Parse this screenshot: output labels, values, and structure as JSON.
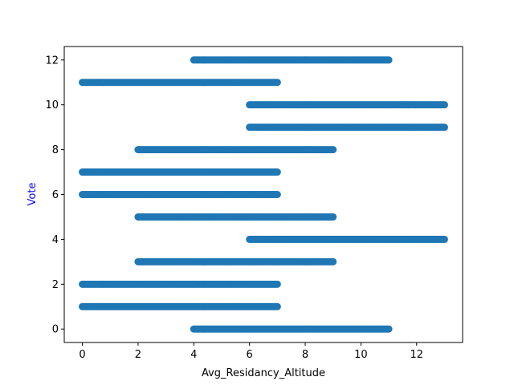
{
  "chart_data": {
    "type": "scatter",
    "title": "",
    "xlabel": "Avg_Residancy_Altitude",
    "ylabel": "Vote",
    "xlim": [
      -0.65,
      13.65
    ],
    "ylim": [
      -0.6,
      12.6
    ],
    "xticks": [
      0,
      2,
      4,
      6,
      8,
      10,
      12
    ],
    "yticks": [
      0,
      2,
      4,
      6,
      8,
      10,
      12
    ],
    "grid": false,
    "marker_color": "#1f77b4",
    "ylabel_color": "#0000ff",
    "bands": [
      {
        "y": 0,
        "x_min": 4,
        "x_max": 11
      },
      {
        "y": 1,
        "x_min": 0,
        "x_max": 7
      },
      {
        "y": 2,
        "x_min": 0,
        "x_max": 7
      },
      {
        "y": 3,
        "x_min": 2,
        "x_max": 9
      },
      {
        "y": 4,
        "x_min": 6,
        "x_max": 13
      },
      {
        "y": 5,
        "x_min": 2,
        "x_max": 9
      },
      {
        "y": 6,
        "x_min": 0,
        "x_max": 7
      },
      {
        "y": 7,
        "x_min": 0,
        "x_max": 7
      },
      {
        "y": 8,
        "x_min": 2,
        "x_max": 9
      },
      {
        "y": 9,
        "x_min": 6,
        "x_max": 13
      },
      {
        "y": 10,
        "x_min": 6,
        "x_max": 13
      },
      {
        "y": 11,
        "x_min": 0,
        "x_max": 7
      },
      {
        "y": 12,
        "x_min": 4,
        "x_max": 11
      }
    ]
  }
}
